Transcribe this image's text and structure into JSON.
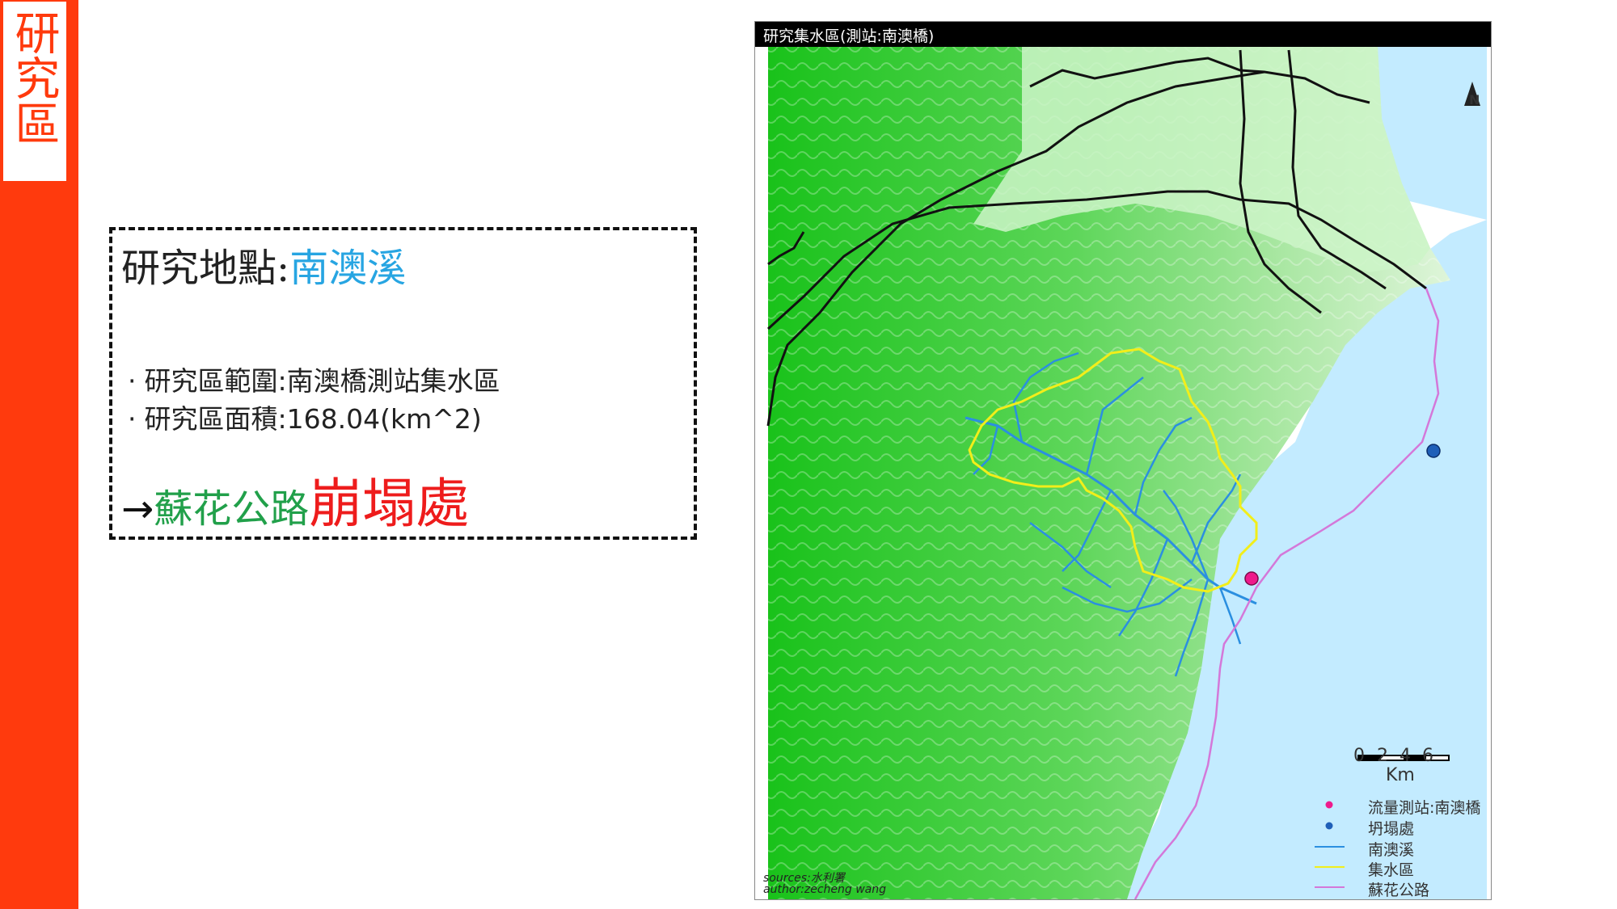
{
  "sidebar": {
    "title": "研究區"
  },
  "info": {
    "site_prefix": "研究地點:",
    "site_name": "南澳溪",
    "bullet_mark": "·",
    "bullets": [
      "研究區範圍:南澳橋測站集水區",
      "研究區面積:168.04(km^2)"
    ],
    "arrow": "→",
    "road_label": "蘇花公路",
    "collapse_label": "崩塌處"
  },
  "map": {
    "title": "研究集水區(測站:南澳橋)",
    "north_label": "N",
    "scale": {
      "ticks": [
        "0",
        "2",
        "4",
        "6"
      ],
      "unit": "Km"
    },
    "legend": [
      {
        "label": "流量測站:南澳橋",
        "symbol": "dot",
        "color": "#ee1a8c"
      },
      {
        "label": "坍塌處",
        "symbol": "dot",
        "color": "#1f5fb8"
      },
      {
        "label": "南澳溪",
        "symbol": "line",
        "color": "#2b8fe0"
      },
      {
        "label": "集水區",
        "symbol": "line",
        "color": "#f2ee1a"
      },
      {
        "label": "蘇花公路",
        "symbol": "line",
        "color": "#d478d9"
      }
    ],
    "credits": [
      "sources:水利署",
      "author:zecheng wang"
    ]
  }
}
